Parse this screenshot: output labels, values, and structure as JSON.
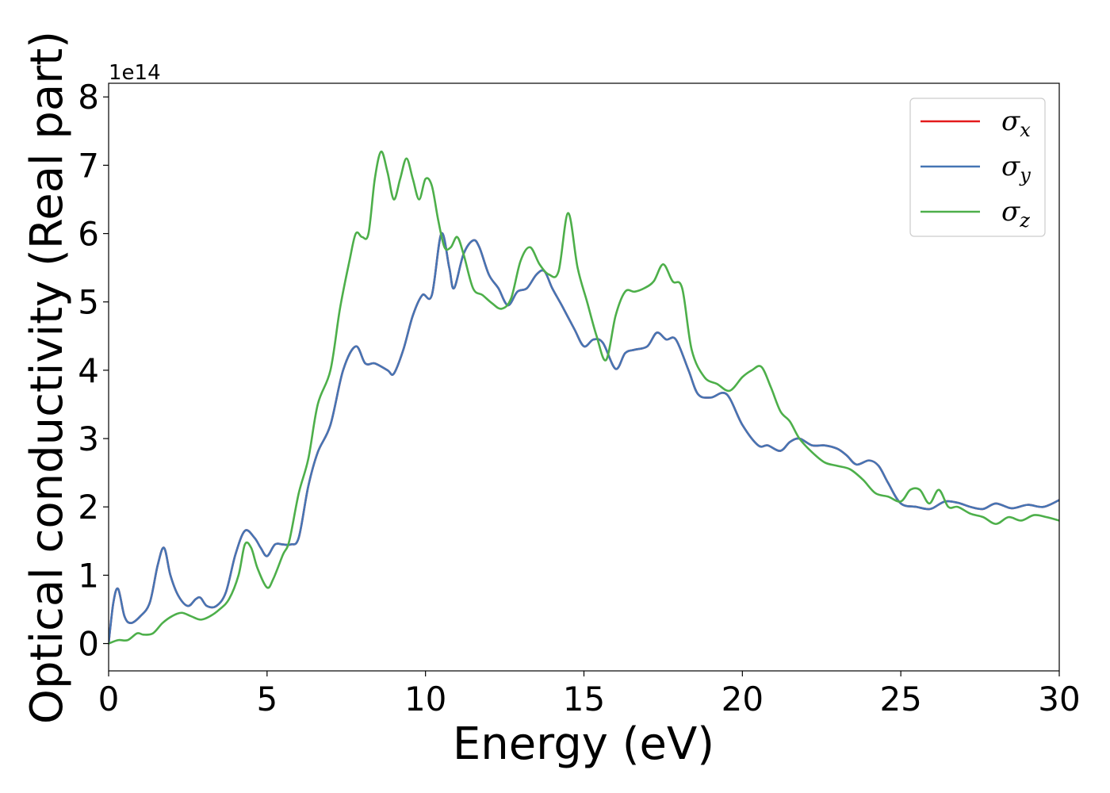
{
  "chart_data": {
    "type": "line",
    "title": "",
    "xlabel": "Energy (eV)",
    "ylabel": "Optical conductivity (Real part)",
    "y_offset_label": "1e14",
    "xlim": [
      0,
      30
    ],
    "ylim": [
      -0.4,
      8.2
    ],
    "x_ticks": [
      0,
      5,
      10,
      15,
      20,
      25,
      30
    ],
    "y_ticks": [
      0,
      1,
      2,
      3,
      4,
      5,
      6,
      7,
      8
    ],
    "grid": false,
    "legend_position": "top-right",
    "series": [
      {
        "name": "σx",
        "symbol": "σ",
        "subscript": "x",
        "color": "#e41a1c",
        "x": [
          0,
          0.15,
          0.3,
          0.5,
          0.7,
          1.0,
          1.3,
          1.55,
          1.75,
          1.95,
          2.2,
          2.5,
          2.75,
          2.9,
          3.1,
          3.4,
          3.7,
          4.0,
          4.3,
          4.6,
          4.8,
          5.0,
          5.25,
          5.5,
          5.75,
          6.0,
          6.3,
          6.6,
          7.0,
          7.4,
          7.8,
          8.1,
          8.4,
          8.8,
          9.0,
          9.3,
          9.6,
          9.9,
          10.2,
          10.5,
          10.75,
          10.9,
          11.2,
          11.5,
          11.7,
          12.0,
          12.3,
          12.6,
          12.9,
          13.2,
          13.5,
          13.75,
          14.0,
          14.3,
          14.7,
          15.0,
          15.3,
          15.6,
          16.0,
          16.3,
          16.6,
          17.0,
          17.3,
          17.6,
          17.9,
          18.3,
          18.6,
          19.0,
          19.5,
          20.0,
          20.5,
          20.8,
          21.2,
          21.5,
          21.8,
          22.2,
          22.6,
          23.0,
          23.3,
          23.6,
          24.0,
          24.3,
          24.6,
          25.0,
          25.5,
          25.8,
          26.0,
          26.4,
          26.8,
          27.2,
          27.6,
          28.0,
          28.5,
          29.0,
          29.5,
          30.0
        ],
        "y": [
          0.0,
          0.6,
          0.8,
          0.4,
          0.3,
          0.4,
          0.6,
          1.15,
          1.4,
          1.0,
          0.7,
          0.55,
          0.65,
          0.67,
          0.55,
          0.55,
          0.75,
          1.3,
          1.65,
          1.55,
          1.4,
          1.28,
          1.45,
          1.45,
          1.45,
          1.55,
          2.3,
          2.8,
          3.2,
          4.0,
          4.35,
          4.1,
          4.1,
          4.0,
          3.95,
          4.3,
          4.8,
          5.1,
          5.1,
          6.0,
          5.5,
          5.2,
          5.7,
          5.9,
          5.8,
          5.4,
          5.2,
          4.95,
          5.15,
          5.2,
          5.4,
          5.45,
          5.2,
          4.95,
          4.6,
          4.35,
          4.45,
          4.4,
          4.02,
          4.25,
          4.3,
          4.35,
          4.55,
          4.45,
          4.45,
          4.0,
          3.65,
          3.6,
          3.65,
          3.2,
          2.9,
          2.9,
          2.82,
          2.95,
          3.0,
          2.9,
          2.9,
          2.85,
          2.75,
          2.62,
          2.68,
          2.6,
          2.35,
          2.05,
          2.0,
          1.97,
          1.98,
          2.08,
          2.06,
          2.0,
          1.97,
          2.05,
          1.98,
          2.03,
          2.0,
          2.1
        ]
      },
      {
        "name": "σy",
        "symbol": "σ",
        "subscript": "y",
        "color": "#4575b4",
        "x": [
          0,
          0.15,
          0.3,
          0.5,
          0.7,
          1.0,
          1.3,
          1.55,
          1.75,
          1.95,
          2.2,
          2.5,
          2.75,
          2.9,
          3.1,
          3.4,
          3.7,
          4.0,
          4.3,
          4.6,
          4.8,
          5.0,
          5.25,
          5.5,
          5.75,
          6.0,
          6.3,
          6.6,
          7.0,
          7.4,
          7.8,
          8.1,
          8.4,
          8.8,
          9.0,
          9.3,
          9.6,
          9.9,
          10.2,
          10.5,
          10.75,
          10.9,
          11.2,
          11.5,
          11.7,
          12.0,
          12.3,
          12.6,
          12.9,
          13.2,
          13.5,
          13.75,
          14.0,
          14.3,
          14.7,
          15.0,
          15.3,
          15.6,
          16.0,
          16.3,
          16.6,
          17.0,
          17.3,
          17.6,
          17.9,
          18.3,
          18.6,
          19.0,
          19.5,
          20.0,
          20.5,
          20.8,
          21.2,
          21.5,
          21.8,
          22.2,
          22.6,
          23.0,
          23.3,
          23.6,
          24.0,
          24.3,
          24.6,
          25.0,
          25.5,
          25.8,
          26.0,
          26.4,
          26.8,
          27.2,
          27.6,
          28.0,
          28.5,
          29.0,
          29.5,
          30.0
        ],
        "y": [
          0.0,
          0.6,
          0.8,
          0.4,
          0.3,
          0.4,
          0.6,
          1.15,
          1.4,
          1.0,
          0.7,
          0.55,
          0.65,
          0.67,
          0.55,
          0.55,
          0.75,
          1.3,
          1.65,
          1.55,
          1.4,
          1.28,
          1.45,
          1.45,
          1.45,
          1.55,
          2.3,
          2.8,
          3.2,
          4.0,
          4.35,
          4.1,
          4.1,
          4.0,
          3.95,
          4.3,
          4.8,
          5.1,
          5.1,
          6.0,
          5.5,
          5.2,
          5.7,
          5.9,
          5.8,
          5.4,
          5.2,
          4.95,
          5.15,
          5.2,
          5.4,
          5.45,
          5.2,
          4.95,
          4.6,
          4.35,
          4.45,
          4.4,
          4.02,
          4.25,
          4.3,
          4.35,
          4.55,
          4.45,
          4.45,
          4.0,
          3.65,
          3.6,
          3.65,
          3.2,
          2.9,
          2.9,
          2.82,
          2.95,
          3.0,
          2.9,
          2.9,
          2.85,
          2.75,
          2.62,
          2.68,
          2.6,
          2.35,
          2.05,
          2.0,
          1.97,
          1.98,
          2.08,
          2.06,
          2.0,
          1.97,
          2.05,
          1.98,
          2.03,
          2.0,
          2.1
        ]
      },
      {
        "name": "σz",
        "symbol": "σ",
        "subscript": "z",
        "color": "#4daf4a",
        "x": [
          0,
          0.3,
          0.6,
          0.9,
          1.1,
          1.4,
          1.7,
          2.0,
          2.3,
          2.6,
          2.9,
          3.2,
          3.5,
          3.8,
          4.1,
          4.3,
          4.5,
          4.7,
          5.0,
          5.2,
          5.5,
          5.7,
          6.0,
          6.3,
          6.6,
          7.0,
          7.3,
          7.6,
          7.8,
          8.0,
          8.2,
          8.4,
          8.6,
          8.8,
          9.0,
          9.2,
          9.4,
          9.6,
          9.8,
          10.0,
          10.2,
          10.4,
          10.6,
          10.8,
          11.0,
          11.2,
          11.5,
          11.8,
          12.1,
          12.4,
          12.7,
          13.0,
          13.3,
          13.6,
          13.9,
          14.2,
          14.5,
          14.8,
          15.1,
          15.4,
          15.7,
          16.0,
          16.3,
          16.6,
          16.9,
          17.2,
          17.5,
          17.8,
          18.1,
          18.4,
          18.8,
          19.2,
          19.6,
          20.0,
          20.3,
          20.6,
          20.9,
          21.2,
          21.5,
          21.8,
          22.2,
          22.6,
          23.0,
          23.4,
          23.8,
          24.2,
          24.6,
          25.0,
          25.3,
          25.6,
          25.9,
          26.2,
          26.5,
          26.8,
          27.2,
          27.6,
          28.0,
          28.4,
          28.8,
          29.2,
          29.6,
          30.0
        ],
        "y": [
          0.0,
          0.05,
          0.05,
          0.15,
          0.13,
          0.15,
          0.3,
          0.4,
          0.45,
          0.4,
          0.35,
          0.4,
          0.5,
          0.65,
          1.0,
          1.45,
          1.4,
          1.1,
          0.82,
          0.95,
          1.3,
          1.5,
          2.2,
          2.7,
          3.5,
          4.0,
          4.9,
          5.6,
          6.0,
          5.95,
          6.0,
          6.8,
          7.2,
          6.9,
          6.5,
          6.8,
          7.1,
          6.8,
          6.5,
          6.8,
          6.7,
          6.2,
          5.8,
          5.8,
          5.95,
          5.7,
          5.2,
          5.1,
          4.98,
          4.9,
          5.05,
          5.6,
          5.8,
          5.55,
          5.4,
          5.45,
          6.3,
          5.5,
          5.0,
          4.5,
          4.15,
          4.8,
          5.15,
          5.15,
          5.2,
          5.3,
          5.55,
          5.3,
          5.2,
          4.3,
          3.9,
          3.8,
          3.7,
          3.9,
          4.0,
          4.05,
          3.75,
          3.4,
          3.25,
          3.0,
          2.8,
          2.65,
          2.6,
          2.55,
          2.4,
          2.2,
          2.15,
          2.08,
          2.25,
          2.25,
          2.05,
          2.25,
          2.0,
          2.0,
          1.9,
          1.85,
          1.75,
          1.85,
          1.8,
          1.88,
          1.85,
          1.8
        ]
      }
    ]
  }
}
